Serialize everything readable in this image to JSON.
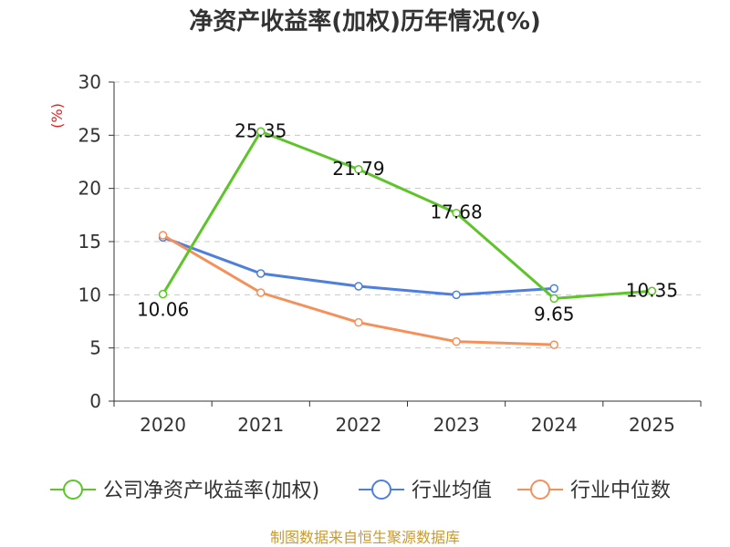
{
  "title": "净资产收益率(加权)历年情况(%)",
  "source": "制图数据来自恒生聚源数据库",
  "chart_data": {
    "type": "line",
    "title": "净资产收益率(加权)历年情况(%)",
    "ylabel": "(%)",
    "xlabel": "",
    "ylim": [
      0,
      30
    ],
    "yticks": [
      0,
      5,
      10,
      15,
      20,
      25,
      30
    ],
    "categories": [
      "2020",
      "2021",
      "2022",
      "2023",
      "2024",
      "2025"
    ],
    "grid": true,
    "legend_position": "bottom",
    "series": [
      {
        "name": "公司净资产收益率(加权)",
        "color": "#5dc42a",
        "values": [
          10.06,
          25.35,
          21.79,
          17.68,
          9.65,
          10.35
        ],
        "labels": [
          "10.06",
          "25.35",
          "21.79",
          "17.68",
          "9.65",
          "10.35"
        ]
      },
      {
        "name": "行业均值",
        "color": "#4f7fdc",
        "values": [
          15.4,
          12.0,
          10.8,
          10.0,
          10.6,
          null
        ]
      },
      {
        "name": "行业中位数",
        "color": "#f5905a",
        "values": [
          15.6,
          10.2,
          7.4,
          5.6,
          5.3,
          null
        ]
      }
    ]
  }
}
